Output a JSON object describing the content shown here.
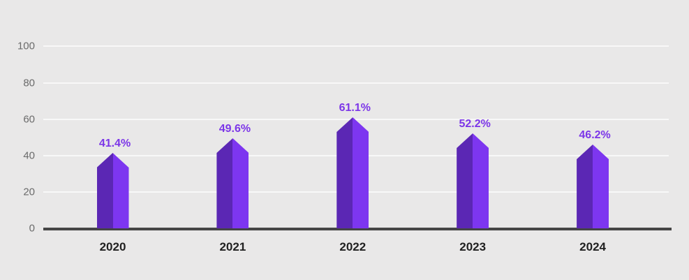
{
  "chart_data": {
    "type": "bar",
    "title": "",
    "categories": [
      "2020",
      "2021",
      "2022",
      "2023",
      "2024"
    ],
    "values": [
      41.4,
      49.6,
      61.1,
      52.2,
      46.2
    ],
    "value_labels": [
      "41.4%",
      "49.6%",
      "61.1%",
      "52.2%",
      "46.2%"
    ],
    "unit": "%",
    "yticks": [
      "0",
      "20",
      "40",
      "60",
      "80",
      "100"
    ],
    "ytick_values": [
      0,
      20,
      40,
      60,
      80,
      100
    ],
    "ylim": [
      0,
      100
    ],
    "grid": "horizontal",
    "legend": "none",
    "bar_style": "pentagon-top-two-tone",
    "colors": {
      "bar_left": "#5b27b4",
      "bar_right": "#7d36f0",
      "value_label": "#7c36e8",
      "axis_line": "#454545",
      "gridline": "#f8f8f8",
      "background": "#e9e8e8",
      "ytick_text": "#6b6b6b",
      "xtick_text": "#212121"
    }
  }
}
